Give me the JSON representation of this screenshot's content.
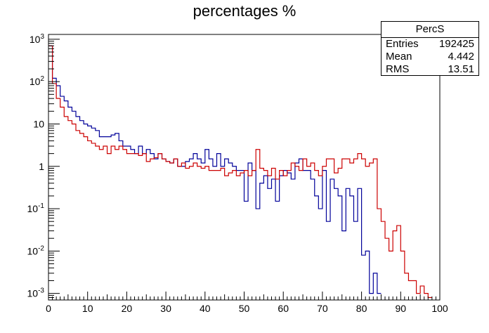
{
  "title": "percentages %",
  "stats_box": {
    "name": "PercS",
    "rows": [
      {
        "label": "Entries",
        "value": "192425"
      },
      {
        "label": "Mean",
        "value": "4.442"
      },
      {
        "label": "RMS",
        "value": "13.51"
      }
    ]
  },
  "chart_data": {
    "type": "line",
    "xlim": [
      0,
      100
    ],
    "ylim": [
      0.0007,
      1300
    ],
    "y_scale": "log",
    "grid": false,
    "x_ticks": [
      "0",
      "10",
      "20",
      "30",
      "40",
      "50",
      "60",
      "70",
      "80",
      "90",
      "100"
    ],
    "y_ticks": [
      {
        "base": "10",
        "exp": "-3"
      },
      {
        "base": "10",
        "exp": "-2"
      },
      {
        "base": "10",
        "exp": "-1"
      },
      {
        "base": "1",
        "exp": ""
      },
      {
        "base": "10",
        "exp": ""
      },
      {
        "base": "10",
        "exp": "2"
      },
      {
        "base": "10",
        "exp": "3"
      }
    ],
    "bin_width": 1,
    "series": [
      {
        "color": "#000099",
        "x": [
          0,
          1,
          2,
          3,
          4,
          5,
          6,
          7,
          8,
          9,
          10,
          11,
          12,
          13,
          14,
          15,
          16,
          17,
          18,
          19,
          20,
          21,
          22,
          23,
          24,
          25,
          26,
          27,
          28,
          29,
          30,
          31,
          32,
          33,
          34,
          35,
          36,
          37,
          38,
          39,
          40,
          41,
          42,
          43,
          44,
          45,
          46,
          47,
          48,
          49,
          50,
          51,
          52,
          53,
          54,
          55,
          56,
          57,
          58,
          59,
          60,
          61,
          62,
          63,
          64,
          65,
          66,
          67,
          68,
          69,
          70,
          71,
          72,
          73,
          74,
          75,
          76,
          77,
          78,
          79,
          80,
          81,
          82,
          83,
          84
        ],
        "values": [
          700,
          120,
          80,
          45,
          35,
          25,
          20,
          15,
          12,
          10,
          9,
          8,
          7,
          5,
          5,
          5,
          5.5,
          6,
          4,
          3,
          3,
          2.5,
          2,
          3,
          2,
          2.5,
          2,
          1.5,
          2,
          1.5,
          1.3,
          1.2,
          1.5,
          1,
          1,
          1.3,
          1.5,
          2,
          1.5,
          1.2,
          2.5,
          1.5,
          1,
          2,
          1,
          1.5,
          1.2,
          1,
          0.8,
          0.8,
          0.15,
          1.2,
          0.8,
          0.1,
          0.4,
          0.6,
          0.3,
          0.5,
          0.15,
          0.6,
          0.8,
          0.7,
          0.5,
          1.2,
          1.5,
          0.8,
          0.8,
          0.5,
          0.2,
          0.1,
          0.8,
          0.05,
          0.5,
          0.3,
          0.2,
          0.03,
          0.3,
          0.2,
          0.05,
          0.3,
          0.008,
          0.01,
          0.001,
          0.003,
          0.001
        ]
      },
      {
        "color": "#cc0000",
        "x": [
          0,
          1,
          2,
          3,
          4,
          5,
          6,
          7,
          8,
          9,
          10,
          11,
          12,
          13,
          14,
          15,
          16,
          17,
          18,
          19,
          20,
          21,
          22,
          23,
          24,
          25,
          26,
          27,
          28,
          29,
          30,
          31,
          32,
          33,
          34,
          35,
          36,
          37,
          38,
          39,
          40,
          41,
          42,
          43,
          44,
          45,
          46,
          47,
          48,
          49,
          50,
          51,
          52,
          53,
          54,
          55,
          56,
          57,
          58,
          59,
          60,
          61,
          62,
          63,
          64,
          65,
          66,
          67,
          68,
          69,
          70,
          71,
          72,
          73,
          74,
          75,
          76,
          77,
          78,
          79,
          80,
          81,
          82,
          83,
          84,
          85,
          86,
          87,
          88,
          89,
          90,
          91,
          92,
          93,
          94,
          95,
          96,
          97
        ],
        "values": [
          700,
          90,
          40,
          25,
          15,
          12,
          10,
          7,
          6,
          5,
          4,
          3.5,
          3,
          2.5,
          3,
          2,
          3,
          2.5,
          3,
          2.5,
          2,
          2,
          2,
          1.8,
          2,
          1.3,
          1.5,
          1.6,
          2,
          1.5,
          1.3,
          1.2,
          1.5,
          1,
          1.2,
          0.9,
          1,
          1.2,
          1,
          0.9,
          1,
          0.8,
          0.8,
          0.8,
          0.9,
          0.6,
          0.7,
          0.8,
          0.6,
          0.7,
          0.8,
          0.6,
          0.8,
          2.5,
          0.9,
          0.8,
          0.6,
          0.9,
          0.5,
          0.8,
          0.6,
          0.8,
          1.2,
          1,
          0.8,
          1.5,
          1,
          1.2,
          0.8,
          0.6,
          1,
          1.5,
          1.5,
          0.7,
          0.9,
          1.5,
          1.5,
          1.2,
          1.5,
          2,
          1.5,
          1,
          1.2,
          1.5,
          0.1,
          0.05,
          0.02,
          0.01,
          0.03,
          0.04,
          0.01,
          0.003,
          0.002,
          0.002,
          0.001,
          0.0015,
          0.001,
          0.0008
        ]
      }
    ]
  }
}
